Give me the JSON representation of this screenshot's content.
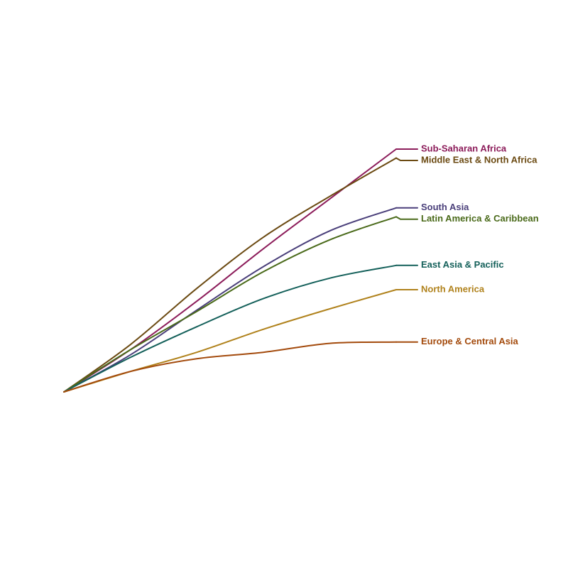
{
  "chart_data": {
    "type": "line",
    "title": "",
    "xlabel": "",
    "ylabel": "",
    "grid": false,
    "legend": "direct-labels-right",
    "x": [
      0,
      1,
      2,
      3,
      4,
      5
    ],
    "xlim": [
      0,
      5
    ],
    "ylim": [
      0,
      1
    ],
    "series": [
      {
        "name": "Sub-Saharan Africa",
        "color": "#8c1c5a",
        "values": [
          0.0,
          0.165,
          0.355,
          0.56,
          0.755,
          0.95
        ]
      },
      {
        "name": "Middle East & North Africa",
        "color": "#6b4a12",
        "values": [
          0.0,
          0.185,
          0.405,
          0.605,
          0.765,
          0.915
        ]
      },
      {
        "name": "South Asia",
        "color": "#4a3f7a",
        "values": [
          0.0,
          0.145,
          0.32,
          0.49,
          0.63,
          0.72
        ]
      },
      {
        "name": "Latin America & Caribbean",
        "color": "#4a6a1a",
        "values": [
          0.0,
          0.165,
          0.315,
          0.47,
          0.595,
          0.685
        ]
      },
      {
        "name": "East Asia & Pacific",
        "color": "#14605a",
        "values": [
          0.0,
          0.135,
          0.255,
          0.365,
          0.445,
          0.495
        ]
      },
      {
        "name": "North America",
        "color": "#b0821c",
        "values": [
          0.0,
          0.08,
          0.155,
          0.245,
          0.325,
          0.4
        ]
      },
      {
        "name": "Europe & Central Asia",
        "color": "#a34a0c",
        "values": [
          0.0,
          0.08,
          0.13,
          0.155,
          0.19,
          0.195
        ]
      }
    ]
  }
}
